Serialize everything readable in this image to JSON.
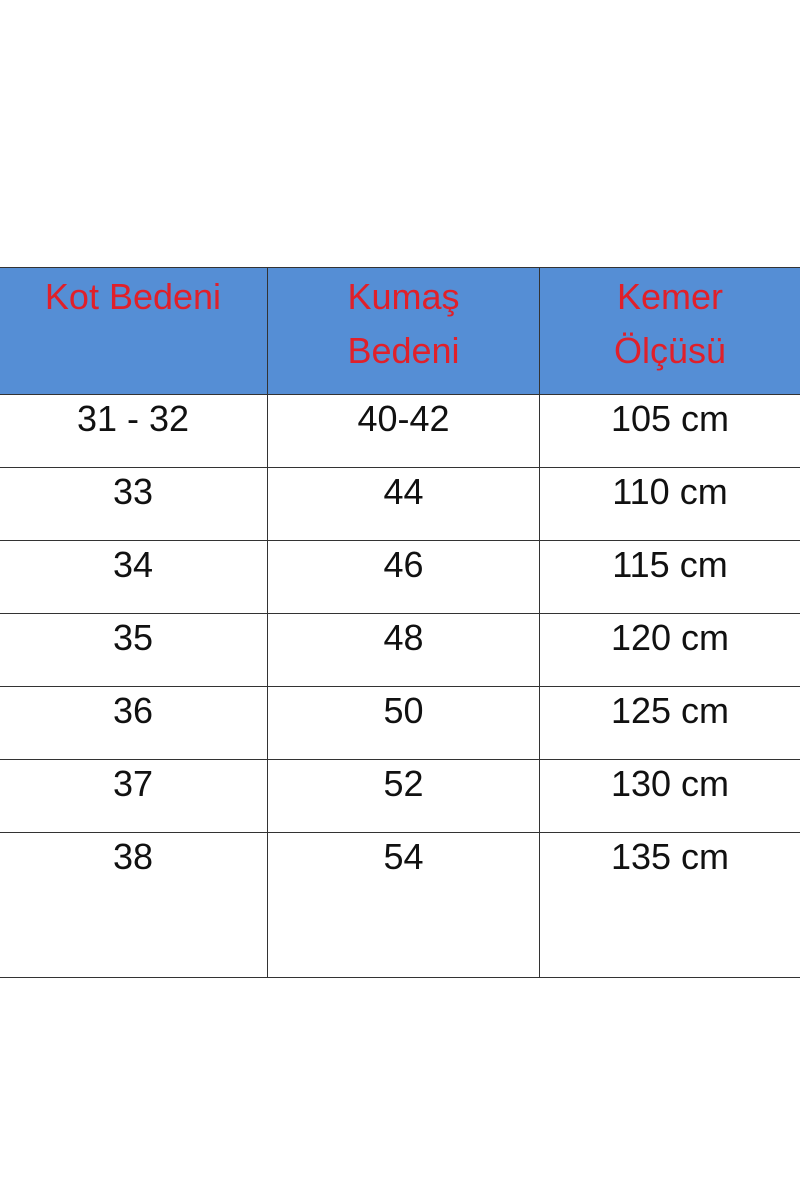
{
  "colors": {
    "header_bg": "#558ed5",
    "header_text": "#e0202a"
  },
  "table": {
    "headers": [
      "Kot Bedeni",
      "Kumaş\nBedeni",
      "Kemer\nÖlçüsü"
    ],
    "header_lines": [
      [
        "Kot Bedeni"
      ],
      [
        "Kumaş",
        "Bedeni"
      ],
      [
        "Kemer",
        "Ölçüsü"
      ]
    ],
    "rows": [
      [
        "31 - 32",
        "40-42",
        "105 cm"
      ],
      [
        "33",
        "44",
        "110 cm"
      ],
      [
        "34",
        "46",
        "115 cm"
      ],
      [
        "35",
        "48",
        "120 cm"
      ],
      [
        "36",
        "50",
        "125 cm"
      ],
      [
        "37",
        "52",
        "130 cm"
      ],
      [
        "38",
        "54",
        "135 cm"
      ]
    ]
  }
}
